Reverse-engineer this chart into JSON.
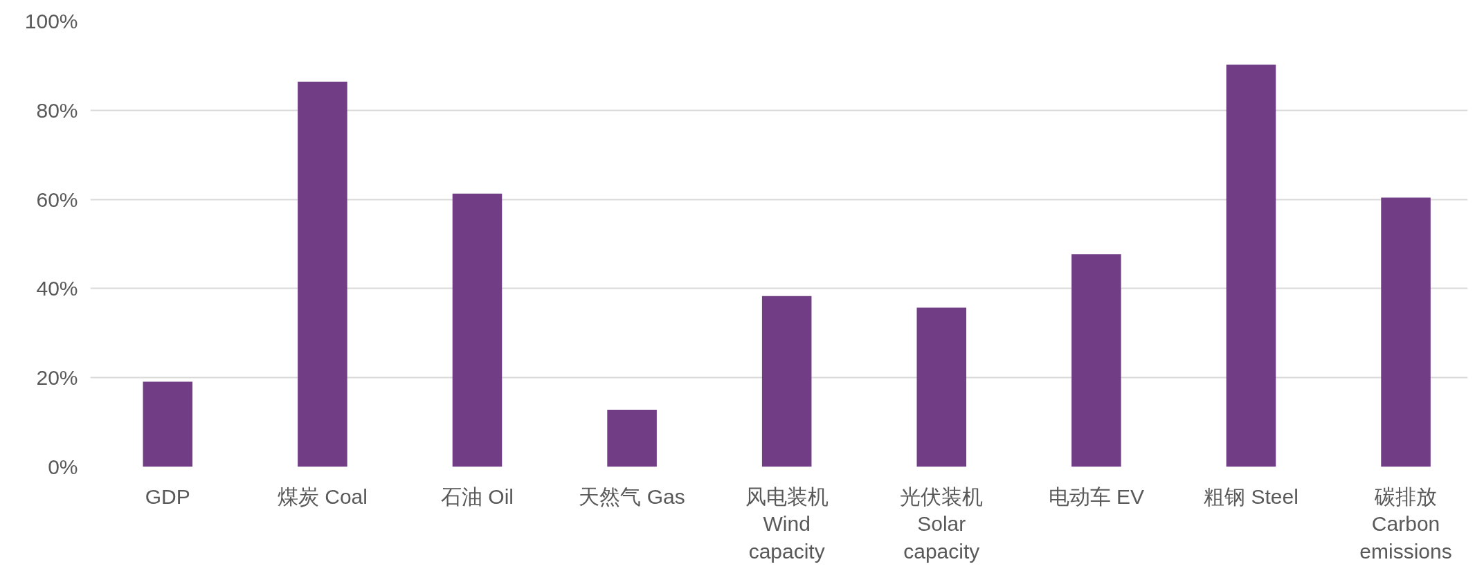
{
  "chart_data": {
    "type": "bar",
    "categories": [
      "GDP",
      "煤炭 Coal",
      "石油 Oil",
      "天然气 Gas",
      "风电装机\nWind\ncapacity",
      "光伏装机\nSolar\ncapacity",
      "电动车 EV",
      "粗钢 Steel",
      "碳排放\nCarbon\nemissions"
    ],
    "values": [
      19.1,
      86.4,
      61.3,
      12.8,
      38.3,
      35.7,
      47.7,
      90.2,
      60.4
    ],
    "color": "#713e86",
    "ylim": [
      0,
      100
    ],
    "yticks": [
      {
        "value": 0,
        "label": "0%"
      },
      {
        "value": 20,
        "label": "20%"
      },
      {
        "value": 40,
        "label": "40%"
      },
      {
        "value": 60,
        "label": "60%"
      },
      {
        "value": 80,
        "label": "80%"
      },
      {
        "value": 100,
        "label": "100%"
      }
    ],
    "grid": "y"
  }
}
